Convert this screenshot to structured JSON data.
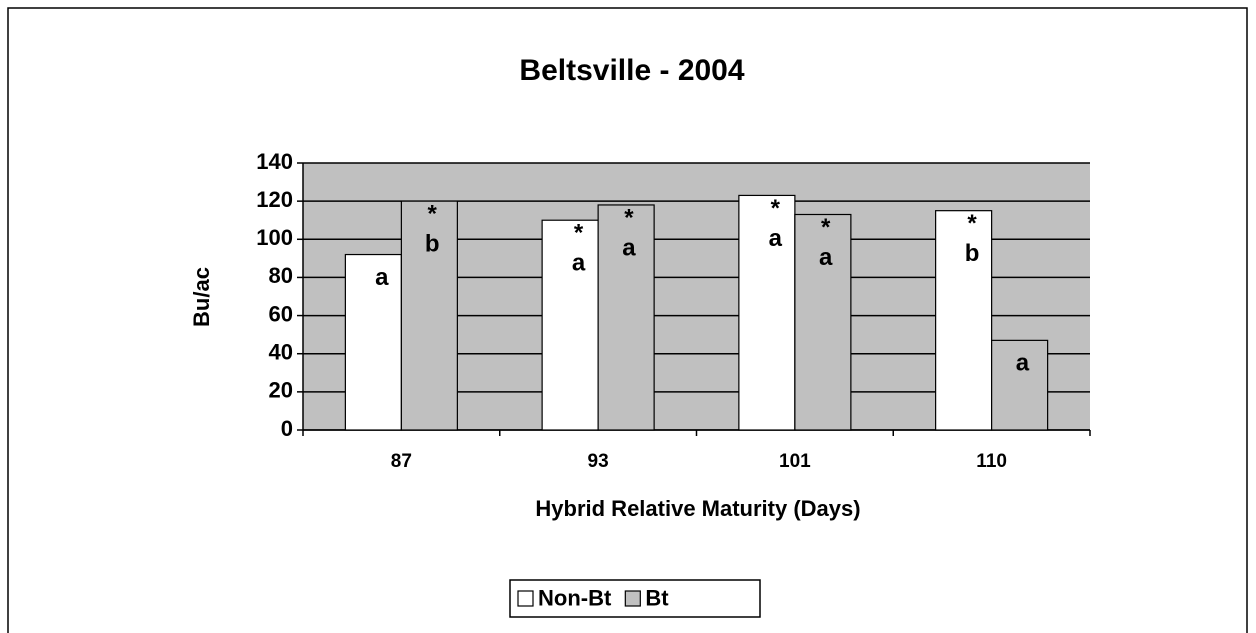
{
  "chart_data": {
    "type": "bar",
    "title": "Beltsville - 2004",
    "x_label": "Hybrid Relative Maturity (Days)",
    "y_label": "Bu/ac",
    "categories": [
      "87",
      "93",
      "101",
      "110"
    ],
    "series": [
      {
        "name": "Non-Bt",
        "color": "#ffffff",
        "values": [
          92,
          110,
          123,
          115
        ],
        "annotations": [
          [
            "a"
          ],
          [
            "*",
            "a"
          ],
          [
            "*",
            "a"
          ],
          [
            "*",
            "b"
          ]
        ]
      },
      {
        "name": "Bt",
        "color": "#c0c0c0",
        "values": [
          120,
          118,
          113,
          47
        ],
        "annotations": [
          [
            "*",
            "b"
          ],
          [
            "*",
            "a"
          ],
          [
            "*",
            "a"
          ],
          [
            "a"
          ]
        ]
      }
    ],
    "ylim": [
      0,
      140
    ],
    "yticks": [
      0,
      20,
      40,
      60,
      80,
      100,
      120,
      140
    ],
    "grid": true,
    "plot_background": "#c0c0c0",
    "legend": "bottom"
  }
}
